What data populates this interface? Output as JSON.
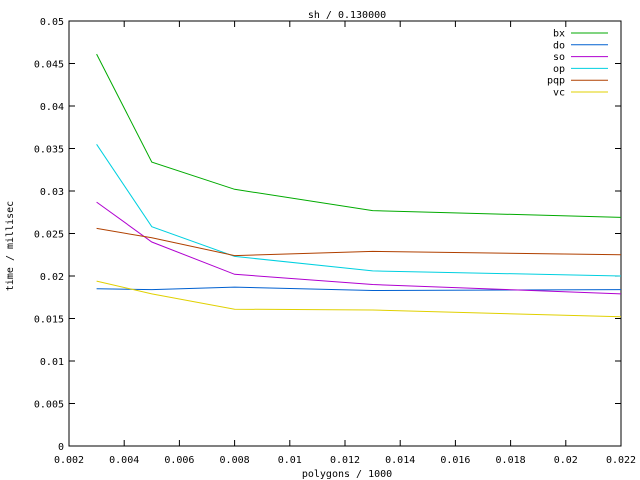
{
  "chart_data": {
    "type": "line",
    "title": "sh / 0.130000",
    "xlabel": "polygons / 1000",
    "ylabel": "time / millisec",
    "xlim": [
      0.002,
      0.022
    ],
    "ylim": [
      0,
      0.05
    ],
    "x_ticks": [
      "0.002",
      "0.004",
      "0.006",
      "0.008",
      "0.01",
      "0.012",
      "0.014",
      "0.016",
      "0.018",
      "0.02",
      "0.022"
    ],
    "y_ticks": [
      "0",
      "0.005",
      "0.01",
      "0.015",
      "0.02",
      "0.025",
      "0.03",
      "0.035",
      "0.04",
      "0.045",
      "0.05"
    ],
    "grid": false,
    "legend_position": "top-right",
    "x": [
      0.003,
      0.005,
      0.008,
      0.013,
      0.022
    ],
    "series": [
      {
        "name": "bx",
        "color": "#00aa00",
        "values": [
          0.0461,
          0.0334,
          0.0302,
          0.0277,
          0.0269
        ]
      },
      {
        "name": "do",
        "color": "#0060d0",
        "values": [
          0.0185,
          0.0184,
          0.0187,
          0.0183,
          0.0184
        ]
      },
      {
        "name": "so",
        "color": "#b000d0",
        "values": [
          0.0287,
          0.024,
          0.0202,
          0.019,
          0.0179
        ]
      },
      {
        "name": "op",
        "color": "#00d0e0",
        "values": [
          0.0355,
          0.0258,
          0.0223,
          0.0206,
          0.02
        ]
      },
      {
        "name": "pqp",
        "color": "#b04000",
        "values": [
          0.0256,
          0.0245,
          0.0224,
          0.0229,
          0.0225
        ]
      },
      {
        "name": "vc",
        "color": "#e0d000",
        "values": [
          0.0194,
          0.0179,
          0.0161,
          0.016,
          0.0152
        ]
      }
    ]
  }
}
